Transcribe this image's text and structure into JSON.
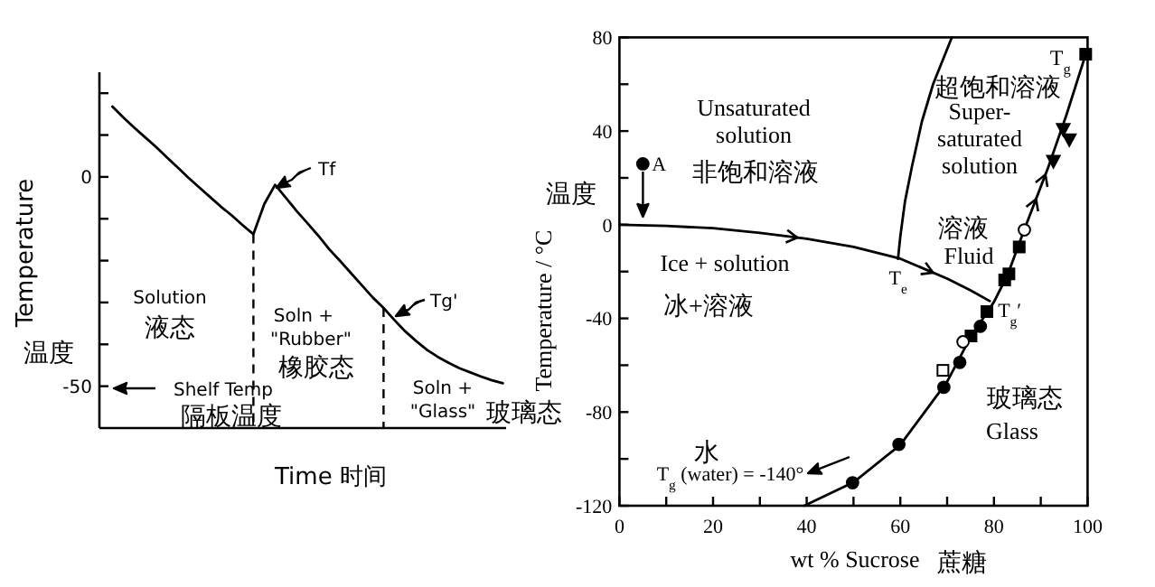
{
  "chart_data": [
    {
      "type": "line",
      "xlabel": "Time 时间",
      "ylabel": "Temperature",
      "categories": [
        null,
        null,
        null,
        null,
        null,
        null,
        null,
        null,
        null,
        null,
        null,
        null,
        null,
        null,
        null,
        null,
        null,
        null,
        null,
        null,
        null,
        null,
        null,
        null,
        null,
        null,
        null,
        null,
        null,
        null,
        null,
        null,
        null,
        null,
        null,
        null,
        null
      ],
      "series": [
        {
          "color": "#000000",
          "values": [
            16.8,
            14.2,
            11.8,
            9.5,
            7.2,
            4.7,
            2.3,
            -0.2,
            -2.5,
            -4.8,
            -7.1,
            -9.2,
            -11.5,
            -13.7,
            -6.5,
            -1.9,
            -5.0,
            -8.2,
            -11.1,
            -14.1,
            -17.3,
            -20.1,
            -23.0,
            -25.9,
            -28.8,
            -31.3,
            -34.2,
            -36.9,
            -39.2,
            -41.3,
            -43.0,
            -44.4,
            -45.7,
            -46.7,
            -47.7,
            -48.6,
            -49.3
          ]
        }
      ],
      "ylim": [
        -60,
        25
      ],
      "yticks": [
        {
          "value": 20,
          "label": null
        },
        {
          "value": 10,
          "label": null
        },
        0,
        {
          "value": -10,
          "label": null
        },
        {
          "value": -20,
          "label": null
        },
        {
          "value": -30,
          "label": null
        },
        {
          "value": -40,
          "label": null
        },
        -50
      ],
      "tick_labels": "y",
      "marker": "none",
      "line_style": "solid",
      "annotations": [
        "Tf",
        "Tg'",
        "Solution",
        "液态",
        "Soln +",
        "\"Rubber\"",
        "橡胶态",
        "Shelf Temp",
        "隔板温度",
        "Soln +",
        "\"Glass\"",
        "玻璃态",
        "温度"
      ]
    },
    {
      "type": "line",
      "xlabel": "wt % Sucrose",
      "ylabel": "Temperature / °C",
      "xlim": [
        0,
        100
      ],
      "ylim": [
        -120,
        80
      ],
      "xticks": [
        0,
        {
          "value": 10,
          "label": null
        },
        20,
        {
          "value": 30,
          "label": null
        },
        40,
        {
          "value": 50,
          "label": null
        },
        60,
        {
          "value": 70,
          "label": null
        },
        80,
        {
          "value": 90,
          "label": null
        },
        100
      ],
      "yticks": [
        -120,
        {
          "value": -100,
          "label": null
        },
        -80,
        {
          "value": -60,
          "label": null
        },
        -40,
        {
          "value": -20,
          "label": null
        },
        0,
        {
          "value": 20,
          "label": null
        },
        40,
        {
          "value": 60,
          "label": null
        },
        80
      ],
      "line_style": "solid",
      "series": [
        {
          "marker": "none",
          "color": "#000000",
          "x": [
            0,
            10,
            20,
            30,
            40,
            50,
            60,
            70,
            75,
            79.1
          ],
          "values": [
            0,
            -0.5,
            -1.5,
            -3.5,
            -6,
            -9.5,
            -14.5,
            -23,
            -28,
            -32.6
          ]
        },
        {
          "marker": "none",
          "color": "#000000",
          "x": [
            71,
            67,
            64.6,
            62.5,
            61,
            60,
            59.5
          ],
          "values": [
            80,
            60,
            44,
            25,
            10,
            -5,
            -14.6
          ]
        },
        {
          "marker": "none",
          "color": "#000000",
          "x": [
            39.5,
            50,
            60,
            70,
            75,
            80,
            83,
            86.5,
            91.5,
            95.5,
            99.6
          ],
          "values": [
            -120,
            -110,
            -94,
            -67,
            -48,
            -33,
            -21,
            -2,
            24,
            47,
            72.8
          ]
        },
        {
          "type": "scatter",
          "marker": "circle",
          "color": "#000000",
          "x": [
            49.8,
            59.7,
            69.3,
            72.7,
            77.1
          ],
          "values": [
            -110.2,
            -93.8,
            -69.4,
            -58.8,
            -43.4
          ]
        },
        {
          "type": "scatter",
          "marker": "square",
          "color": "#000000",
          "x": [
            75.1,
            78.5,
            82.3,
            83.2,
            85.4,
            99.6
          ],
          "values": [
            -47.5,
            -37.1,
            -23.6,
            -21,
            -9.5,
            72.8
          ]
        },
        {
          "type": "scatter",
          "marker": "circle",
          "color": "#ffffff",
          "x": [
            73.4,
            86.5
          ],
          "values": [
            -50,
            -2.2
          ]
        },
        {
          "type": "scatter",
          "marker": "square",
          "color": "#ffffff",
          "x": [
            69.1
          ],
          "values": [
            -62.2
          ]
        },
        {
          "type": "scatter",
          "marker": "triangle",
          "color": "#000000",
          "x": [
            92.7,
            94.8,
            96.1
          ],
          "values": [
            27.1,
            40.7,
            36.3
          ]
        },
        {
          "type": "scatter",
          "marker": "circle",
          "color": "#000000",
          "x": [
            5
          ],
          "values": [
            26
          ]
        }
      ],
      "annotations": [
        "Unsaturated\nsolution",
        "非饱和溶液",
        "超饱和溶液",
        "Super-\nsaturated\nsolution",
        "溶液",
        "Fluid",
        "Ice + solution",
        "冰+溶液",
        {
          "text": "A",
          "x": 5,
          "y": 26
        },
        {
          "text": "T$_{e}$",
          "x": 59.5,
          "y": -14.6
        },
        {
          "text": "T$_{g}$′",
          "x": 79.1,
          "y": -32.6
        },
        {
          "text": "T$_{g}$",
          "x": 99.6,
          "y": 72.8
        },
        "玻璃态",
        "Glass",
        "水",
        "T$_{g}$ (water) = -140°",
        "温度",
        "蔗糖"
      ]
    }
  ]
}
